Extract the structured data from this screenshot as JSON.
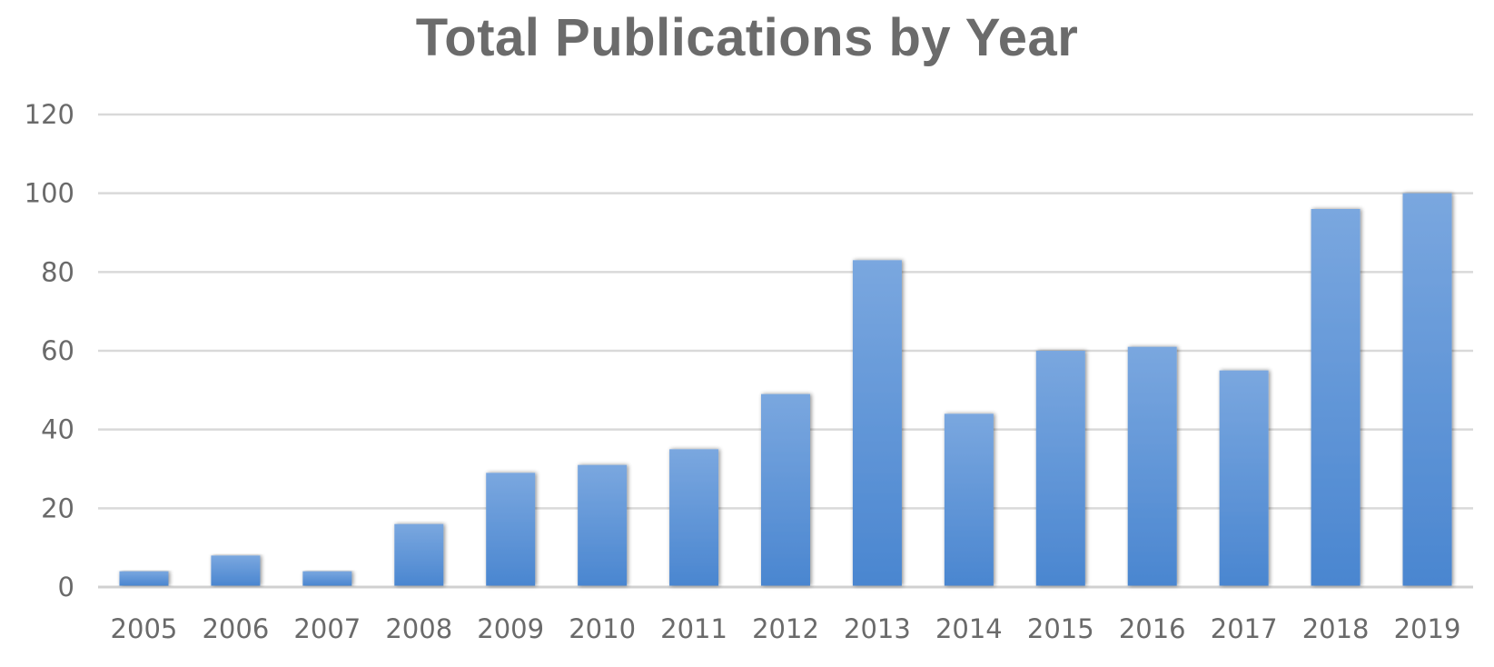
{
  "chart_data": {
    "type": "bar",
    "title": "Total Publications by Year",
    "xlabel": "",
    "ylabel": "",
    "categories": [
      "2005",
      "2006",
      "2007",
      "2008",
      "2009",
      "2010",
      "2011",
      "2012",
      "2013",
      "2014",
      "2015",
      "2016",
      "2017",
      "2018",
      "2019"
    ],
    "values": [
      4,
      8,
      4,
      16,
      29,
      31,
      35,
      49,
      83,
      44,
      60,
      61,
      55,
      96,
      100
    ],
    "ylim": [
      0,
      120
    ],
    "yticks": [
      "0",
      "20",
      "40",
      "60",
      "80",
      "100",
      "120"
    ],
    "grid": true,
    "legend": "none",
    "colors": {
      "bar_top": "#7aa7df",
      "bar_bottom": "#4a86d0",
      "title": "#6b6b6b",
      "tick": "#6a6a6a",
      "grid": "#d9d9d9"
    }
  }
}
